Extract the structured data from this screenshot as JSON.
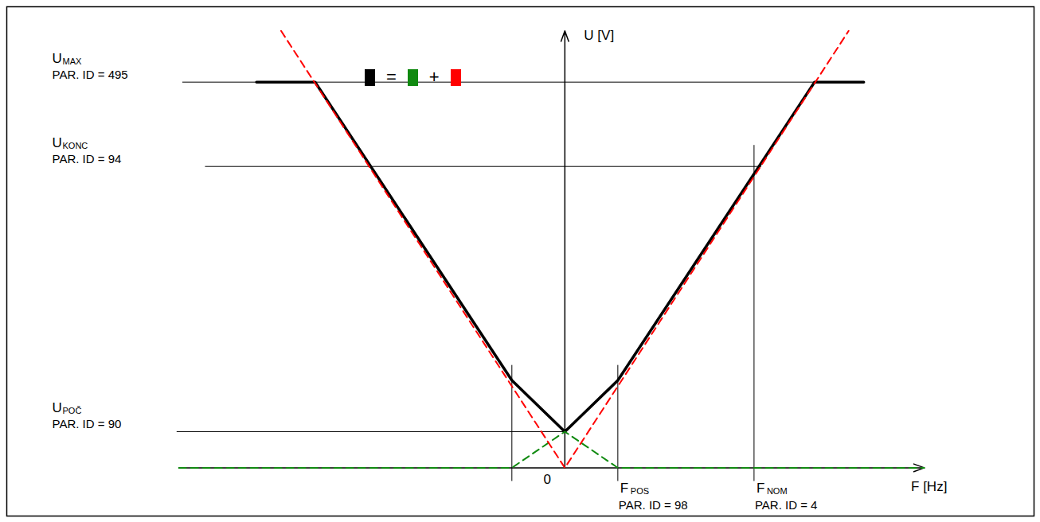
{
  "chart_data": {
    "type": "line",
    "xlabel": "F [Hz]",
    "ylabel": "U [V]",
    "xlim": [
      -295,
      248
    ],
    "ylim": [
      -16,
      153
    ],
    "xticks": [
      0
    ],
    "yticks": [],
    "tick_labels": "x",
    "x_axis_line": [
      -204,
      190
    ],
    "y_axis_line": [
      0,
      145
    ],
    "legend": "top",
    "legend_operators": [
      "=",
      "+"
    ],
    "series": [
      {
        "color": "#000000",
        "line_style": "solid",
        "x": [
          -163,
          -132,
          -28,
          0,
          28,
          132,
          158
        ],
        "values": [
          128,
          128,
          29,
          12,
          29,
          128,
          128
        ]
      },
      {
        "color": "#108a10",
        "line_style": "dashed",
        "x": [
          -204,
          -28,
          0,
          28,
          190
        ],
        "values": [
          0,
          0,
          12,
          0,
          0
        ]
      },
      {
        "color": "#ff0000",
        "line_style": "dashed",
        "x": [
          -150,
          0,
          150
        ],
        "values": [
          145,
          0,
          145
        ]
      }
    ],
    "hlines": [
      {
        "symbol": "U",
        "subscript": "MAX",
        "text": "PAR. ID = 495",
        "value": 128,
        "from": -202,
        "to": 158
      },
      {
        "symbol": "U",
        "subscript": "KONC",
        "text": "PAR. ID = 94",
        "value": 100,
        "from": -190,
        "to": 104
      },
      {
        "symbol": "U",
        "subscript": "POČ",
        "text": "PAR. ID = 90",
        "value": 12,
        "from": -205,
        "to": 0
      }
    ],
    "vlines": [
      {
        "value": -28,
        "from": -4.5,
        "to": 34
      },
      {
        "symbol": "F",
        "subscript": "POS",
        "text": "PAR. ID = 98",
        "value": 28,
        "from": -4.5,
        "to": 34
      },
      {
        "symbol": "F",
        "subscript": "NOM",
        "text": "PAR. ID = 4",
        "value": 100,
        "from": -4.5,
        "to": 107
      }
    ]
  }
}
